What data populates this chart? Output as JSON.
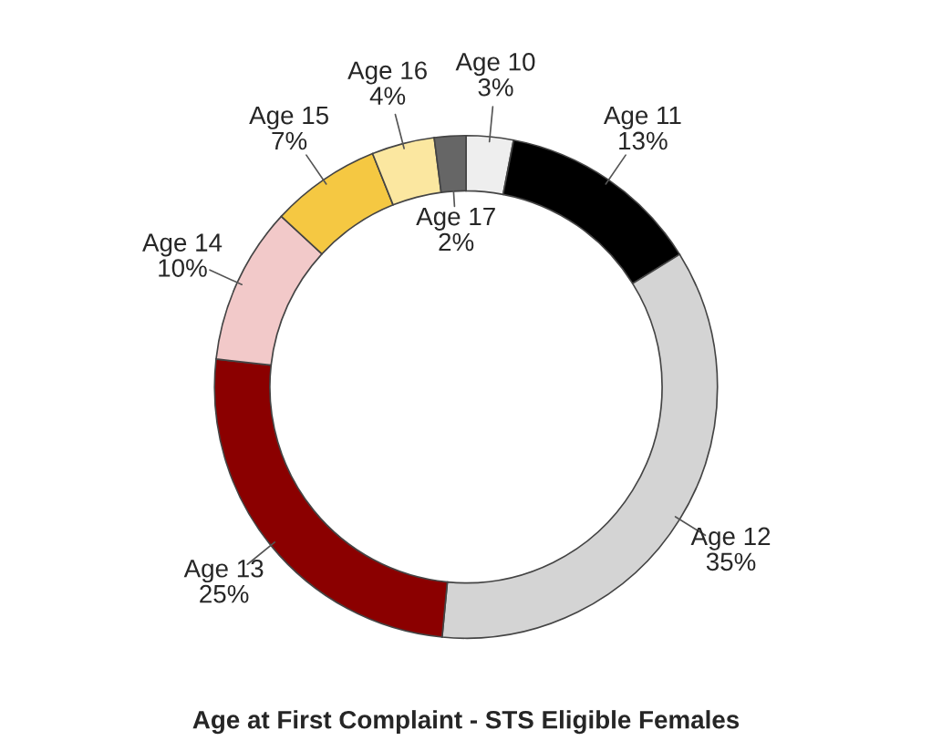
{
  "chart_data": {
    "type": "donut",
    "title": "Age at First Complaint - STS Eligible Females",
    "categories": [
      "Age 10",
      "Age 11",
      "Age 12",
      "Age 13",
      "Age 14",
      "Age 15",
      "Age 16",
      "Age 17"
    ],
    "values": [
      3,
      13,
      35,
      25,
      10,
      7,
      4,
      2
    ],
    "value_labels": [
      "3%",
      "13%",
      "35%",
      "25%",
      "10%",
      "7%",
      "4%",
      "2%"
    ],
    "colors": [
      "#eeeeee",
      "#000000",
      "#d4d4d4",
      "#8b0000",
      "#f2c9c9",
      "#f5c842",
      "#fbe7a0",
      "#666666"
    ],
    "legend": false
  }
}
